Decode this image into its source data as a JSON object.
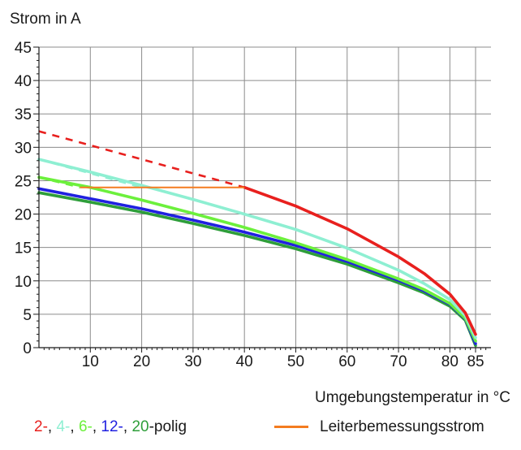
{
  "chart_data": {
    "type": "line",
    "ylabel": "Strom in A",
    "xlabel": "Umgebungstemperatur in °C",
    "xlim": [
      0,
      88
    ],
    "ylim": [
      0,
      45
    ],
    "x_ticks": [
      10,
      20,
      30,
      40,
      50,
      60,
      70,
      80,
      85
    ],
    "y_ticks": [
      0,
      5,
      10,
      15,
      20,
      25,
      30,
      35,
      40,
      45
    ],
    "grid": true,
    "rated_current": {
      "name": "Leiterbemessungsstrom",
      "color": "#f47c20",
      "x": [
        8,
        40
      ],
      "y": [
        24,
        24
      ]
    },
    "series": [
      {
        "color": "#e8201e",
        "dashed_x": [
          0,
          40
        ],
        "dashed_y": [
          32.4,
          24
        ],
        "x": [
          40,
          50,
          60,
          70,
          75,
          80,
          83,
          85
        ],
        "y": [
          24,
          21.2,
          17.8,
          13.6,
          11.1,
          8.0,
          5.2,
          2.0
        ]
      },
      {
        "color": "#8eefd2",
        "dashed_x": [
          0,
          20
        ],
        "dashed_y": [
          28.2,
          24
        ],
        "x": [
          0,
          10,
          20,
          30,
          40,
          50,
          60,
          70,
          75,
          80,
          83,
          85
        ],
        "y": [
          28.2,
          26.3,
          24.3,
          22.2,
          20.0,
          17.7,
          14.9,
          11.6,
          9.6,
          7.2,
          4.8,
          1.5
        ]
      },
      {
        "color": "#6cf03c",
        "dashed_x": [
          0,
          8
        ],
        "dashed_y": [
          25.5,
          24
        ],
        "x": [
          0,
          10,
          20,
          30,
          40,
          50,
          60,
          70,
          75,
          80,
          83,
          85
        ],
        "y": [
          25.5,
          24.0,
          22.1,
          20.1,
          18.0,
          15.7,
          13.2,
          10.3,
          8.7,
          6.6,
          4.4,
          1.0
        ]
      },
      {
        "color": "#2020e0",
        "dashed_x": [],
        "dashed_y": [],
        "x": [
          0,
          10,
          20,
          30,
          40,
          50,
          60,
          70,
          75,
          80,
          83,
          85
        ],
        "y": [
          23.8,
          22.3,
          20.8,
          19.1,
          17.3,
          15.3,
          12.9,
          10.1,
          8.5,
          6.5,
          4.3,
          0.6
        ]
      },
      {
        "color": "#2e9e3a",
        "dashed_x": [],
        "dashed_y": [],
        "x": [
          0,
          10,
          20,
          30,
          40,
          50,
          60,
          70,
          75,
          80,
          83,
          85
        ],
        "y": [
          23.2,
          21.8,
          20.3,
          18.6,
          16.8,
          14.8,
          12.5,
          9.7,
          8.2,
          6.2,
          4.1,
          0.3
        ]
      }
    ]
  },
  "legend": {
    "poles": [
      {
        "text": "2-",
        "color": "#e8201e"
      },
      {
        "text": ", ",
        "color": "#1a1a1a"
      },
      {
        "text": "4-",
        "color": "#8eefd2"
      },
      {
        "text": ", ",
        "color": "#1a1a1a"
      },
      {
        "text": "6-",
        "color": "#6cf03c"
      },
      {
        "text": ", ",
        "color": "#1a1a1a"
      },
      {
        "text": "12-",
        "color": "#2020e0"
      },
      {
        "text": ", ",
        "color": "#1a1a1a"
      },
      {
        "text": "20",
        "color": "#2e9e3a"
      },
      {
        "text": "-polig",
        "color": "#1a1a1a"
      }
    ],
    "rated": "Leiterbemessungsstrom"
  }
}
